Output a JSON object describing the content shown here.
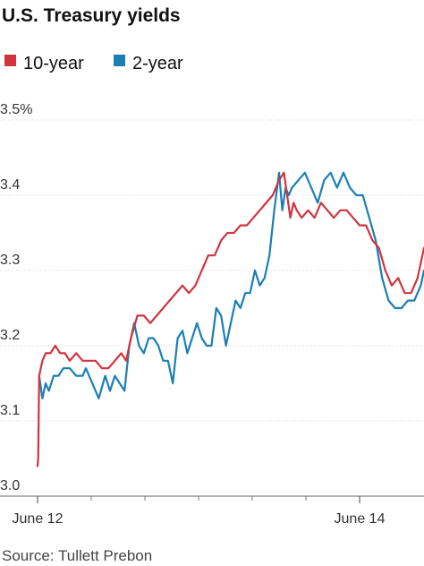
{
  "chart_data": {
    "type": "line",
    "title": "U.S. Treasury yields",
    "source": "Source: Tullett Prebon",
    "legend": [
      {
        "name": "10-year",
        "color": "#d0343f"
      },
      {
        "name": "2-year",
        "color": "#1a7fb5"
      }
    ],
    "y_ticks": [
      "3.5%",
      "3.4",
      "3.3",
      "3.2",
      "3.1",
      "3.0"
    ],
    "y_tick_values": [
      3.5,
      3.4,
      3.3,
      3.2,
      3.1,
      3.0
    ],
    "ylim": [
      3.0,
      3.5
    ],
    "x_ticks": [
      "June 12",
      "June 14"
    ],
    "x_tick_positions": [
      0,
      2
    ],
    "x_minor_ticks": [
      0.333,
      0.667,
      1.0,
      1.333,
      1.667
    ],
    "xlim": [
      0,
      2.4
    ],
    "grid": true,
    "legend_position": "top-left",
    "series": [
      {
        "name": "10-year",
        "color": "#d0343f",
        "x": [
          0,
          0.004,
          0.01,
          0.03,
          0.05,
          0.08,
          0.11,
          0.14,
          0.17,
          0.2,
          0.24,
          0.28,
          0.32,
          0.36,
          0.4,
          0.44,
          0.48,
          0.52,
          0.55,
          0.58,
          0.62,
          0.66,
          0.7,
          0.74,
          0.78,
          0.82,
          0.86,
          0.9,
          0.94,
          0.98,
          1.02,
          1.06,
          1.1,
          1.14,
          1.18,
          1.22,
          1.26,
          1.3,
          1.34,
          1.38,
          1.42,
          1.46,
          1.5,
          1.53,
          1.55,
          1.57,
          1.59,
          1.61,
          1.64,
          1.68,
          1.72,
          1.76,
          1.8,
          1.84,
          1.88,
          1.92,
          1.96,
          2.0,
          2.04,
          2.08,
          2.12,
          2.16,
          2.2,
          2.24,
          2.28,
          2.32,
          2.36,
          2.38,
          2.4
        ],
        "values": [
          3.04,
          3.05,
          3.16,
          3.18,
          3.19,
          3.19,
          3.2,
          3.19,
          3.19,
          3.18,
          3.19,
          3.18,
          3.18,
          3.18,
          3.17,
          3.17,
          3.18,
          3.19,
          3.18,
          3.21,
          3.24,
          3.24,
          3.23,
          3.24,
          3.25,
          3.26,
          3.27,
          3.28,
          3.27,
          3.28,
          3.3,
          3.32,
          3.32,
          3.34,
          3.35,
          3.35,
          3.36,
          3.36,
          3.37,
          3.38,
          3.39,
          3.4,
          3.42,
          3.43,
          3.4,
          3.37,
          3.39,
          3.38,
          3.37,
          3.38,
          3.37,
          3.39,
          3.38,
          3.37,
          3.38,
          3.38,
          3.37,
          3.36,
          3.36,
          3.34,
          3.33,
          3.3,
          3.28,
          3.29,
          3.27,
          3.27,
          3.29,
          3.31,
          3.33
        ]
      },
      {
        "name": "2-year",
        "color": "#1a7fb5",
        "x": [
          0.01,
          0.03,
          0.05,
          0.07,
          0.1,
          0.13,
          0.16,
          0.2,
          0.24,
          0.28,
          0.3,
          0.34,
          0.38,
          0.42,
          0.45,
          0.48,
          0.51,
          0.54,
          0.57,
          0.6,
          0.63,
          0.66,
          0.69,
          0.72,
          0.75,
          0.78,
          0.81,
          0.84,
          0.87,
          0.9,
          0.93,
          0.96,
          0.99,
          1.02,
          1.05,
          1.08,
          1.11,
          1.14,
          1.17,
          1.2,
          1.23,
          1.26,
          1.29,
          1.32,
          1.35,
          1.38,
          1.41,
          1.44,
          1.47,
          1.5,
          1.52,
          1.54,
          1.56,
          1.58,
          1.62,
          1.66,
          1.7,
          1.74,
          1.78,
          1.82,
          1.86,
          1.9,
          1.94,
          1.98,
          2.02,
          2.06,
          2.1,
          2.14,
          2.18,
          2.22,
          2.26,
          2.3,
          2.34,
          2.38,
          2.4
        ],
        "values": [
          3.16,
          3.13,
          3.15,
          3.14,
          3.16,
          3.16,
          3.17,
          3.17,
          3.16,
          3.16,
          3.17,
          3.15,
          3.13,
          3.16,
          3.14,
          3.16,
          3.15,
          3.14,
          3.2,
          3.23,
          3.2,
          3.19,
          3.21,
          3.21,
          3.2,
          3.18,
          3.18,
          3.15,
          3.21,
          3.22,
          3.19,
          3.21,
          3.23,
          3.21,
          3.2,
          3.2,
          3.25,
          3.24,
          3.2,
          3.23,
          3.26,
          3.25,
          3.27,
          3.27,
          3.3,
          3.28,
          3.29,
          3.32,
          3.38,
          3.43,
          3.38,
          3.41,
          3.4,
          3.41,
          3.42,
          3.43,
          3.41,
          3.39,
          3.42,
          3.43,
          3.41,
          3.43,
          3.41,
          3.4,
          3.4,
          3.37,
          3.34,
          3.29,
          3.26,
          3.25,
          3.25,
          3.26,
          3.26,
          3.28,
          3.3
        ]
      }
    ]
  }
}
